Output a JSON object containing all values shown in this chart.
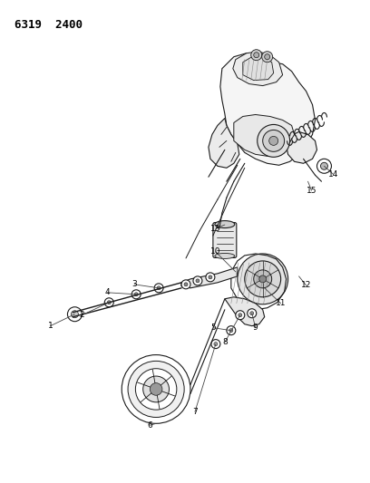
{
  "title": "6319  2400",
  "bg_color": "#ffffff",
  "fig_width": 4.08,
  "fig_height": 5.33,
  "dpi": 100,
  "line_color": "#1a1a1a",
  "lw": 0.8
}
